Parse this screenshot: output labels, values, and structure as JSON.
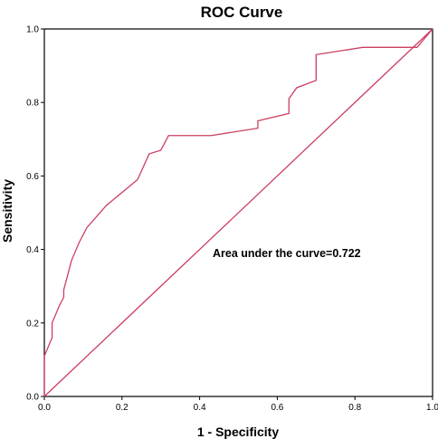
{
  "chart_data": {
    "type": "line",
    "title": "ROC Curve",
    "xlabel": "1 - Specificity",
    "ylabel": "Sensitivity",
    "xlim": [
      0.0,
      1.0
    ],
    "ylim": [
      0.0,
      1.0
    ],
    "x_ticks": [
      "0.0",
      "0.2",
      "0.4",
      "0.6",
      "0.8",
      "1.0"
    ],
    "y_ticks": [
      "0.0",
      "0.2",
      "0.4",
      "0.6",
      "0.8",
      "1.0"
    ],
    "grid": false,
    "annotation": "Area under the curve=0.722",
    "line_color": "#cc3e60",
    "series": [
      {
        "x": [
          0.0,
          0.0,
          0.02,
          0.02,
          0.04,
          0.05,
          0.05,
          0.07,
          0.09,
          0.11,
          0.16,
          0.24,
          0.27,
          0.27,
          0.3,
          0.32,
          0.43,
          0.55,
          0.55,
          0.63,
          0.63,
          0.65,
          0.7,
          0.7,
          0.82,
          0.96,
          1.0
        ],
        "y": [
          0.0,
          0.11,
          0.16,
          0.2,
          0.25,
          0.27,
          0.29,
          0.37,
          0.42,
          0.46,
          0.52,
          0.59,
          0.66,
          0.66,
          0.67,
          0.71,
          0.71,
          0.73,
          0.75,
          0.77,
          0.81,
          0.84,
          0.86,
          0.93,
          0.95,
          0.95,
          1.0
        ]
      },
      {
        "x": [
          0.0,
          1.0
        ],
        "y": [
          0.0,
          1.0
        ]
      }
    ]
  }
}
